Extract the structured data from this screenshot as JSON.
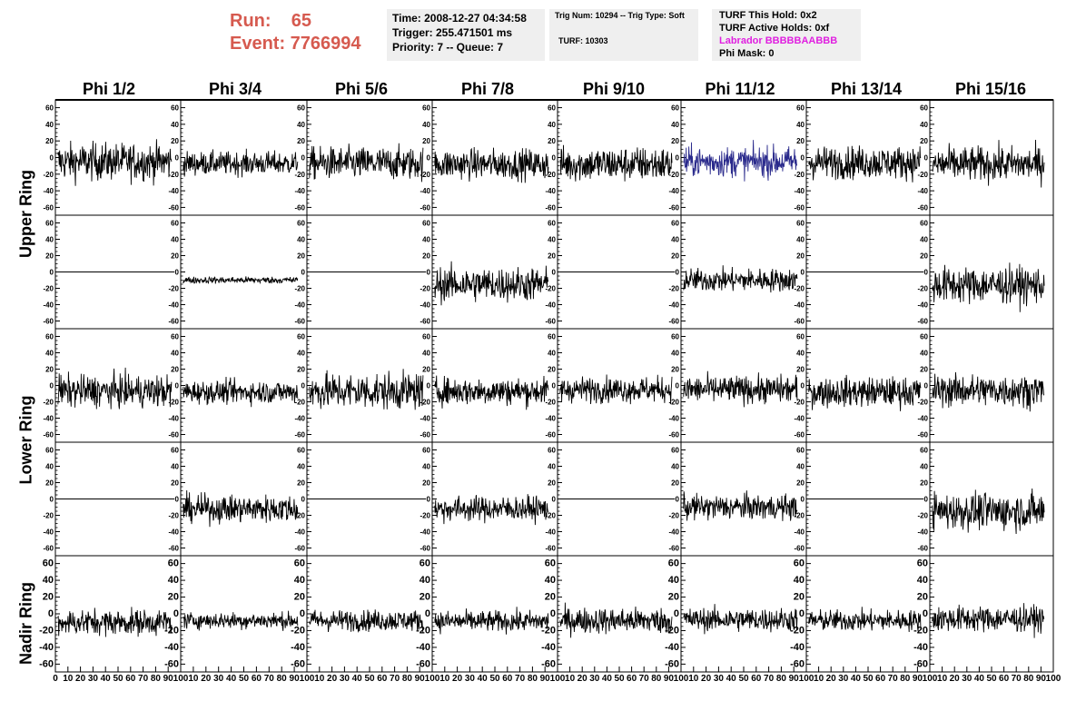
{
  "header": {
    "run_label": "Run:    65",
    "event_label": "Event: 7766994",
    "time": "Time: 2008-12-27 04:34:58",
    "trigger": "Trigger: 255.471501 ms",
    "priority": "Priority: 7 -- Queue: 7",
    "trig_num": "Trig Num: 10294 -- Trig Type: Soft",
    "turf": "TURF: 10303",
    "turf_hold": "TURF This Hold: 0x2",
    "turf_active": "TURF Active Holds: 0xf",
    "labrador": "Labrador BBBBBAABBB",
    "phi_mask": "Phi Mask: 0"
  },
  "columns": [
    "Phi 1/2",
    "Phi 3/4",
    "Phi 5/6",
    "Phi 7/8",
    "Phi 9/10",
    "Phi 11/12",
    "Phi 13/14",
    "Phi 15/16"
  ],
  "rows": [
    "Upper Ring",
    "Lower Ring",
    "Nadir Ring"
  ],
  "colors": {
    "trace": "#000000",
    "highlight": "#2a2a8c",
    "header_text": "#d65a4f",
    "labrador": "#e020e0",
    "box_bg": "#efefef"
  },
  "chart_data": {
    "type": "line",
    "title": "",
    "xlim": [
      0,
      100
    ],
    "ylim": [
      -65,
      65
    ],
    "y_ticks": [
      -60,
      -40,
      -20,
      0,
      20,
      40,
      60
    ],
    "y_tick_labels": [
      "-60",
      "-40",
      "-20",
      "0",
      "20",
      "40",
      "60"
    ],
    "x_ticks": [
      0,
      10,
      20,
      30,
      40,
      50,
      60,
      70,
      80,
      90,
      100
    ],
    "x_tick_labels": [
      "0",
      "10",
      "20",
      "30",
      "40",
      "50",
      "60",
      "70",
      "80",
      "90",
      "100"
    ],
    "grid": false,
    "highlight_panel": {
      "row": 0,
      "col": 5
    },
    "panels": [
      {
        "row": 0,
        "col": 0,
        "mean": -5,
        "amp": 16,
        "flat": false
      },
      {
        "row": 0,
        "col": 1,
        "mean": -7,
        "amp": 10,
        "flat": false
      },
      {
        "row": 0,
        "col": 2,
        "mean": -7,
        "amp": 14,
        "flat": false
      },
      {
        "row": 0,
        "col": 3,
        "mean": -8,
        "amp": 13,
        "flat": false
      },
      {
        "row": 0,
        "col": 4,
        "mean": -8,
        "amp": 15,
        "flat": false
      },
      {
        "row": 0,
        "col": 5,
        "mean": -5,
        "amp": 13,
        "flat": false
      },
      {
        "row": 0,
        "col": 6,
        "mean": -6,
        "amp": 14,
        "flat": false
      },
      {
        "row": 0,
        "col": 7,
        "mean": -8,
        "amp": 15,
        "flat": false
      },
      {
        "row": 1,
        "col": 0,
        "mean": 0,
        "amp": 0,
        "flat": true
      },
      {
        "row": 1,
        "col": 1,
        "mean": -10,
        "amp": 3,
        "flat": false
      },
      {
        "row": 1,
        "col": 2,
        "mean": 0,
        "amp": 0,
        "flat": true
      },
      {
        "row": 1,
        "col": 3,
        "mean": -15,
        "amp": 15,
        "flat": false
      },
      {
        "row": 1,
        "col": 4,
        "mean": 0,
        "amp": 0,
        "flat": true
      },
      {
        "row": 1,
        "col": 5,
        "mean": -10,
        "amp": 10,
        "flat": false
      },
      {
        "row": 1,
        "col": 6,
        "mean": 0,
        "amp": 0,
        "flat": true
      },
      {
        "row": 1,
        "col": 7,
        "mean": -16,
        "amp": 16,
        "flat": false
      },
      {
        "row": 2,
        "col": 0,
        "mean": -7,
        "amp": 14,
        "flat": false
      },
      {
        "row": 2,
        "col": 1,
        "mean": -8,
        "amp": 10,
        "flat": false
      },
      {
        "row": 2,
        "col": 2,
        "mean": -7,
        "amp": 16,
        "flat": false
      },
      {
        "row": 2,
        "col": 3,
        "mean": -7,
        "amp": 12,
        "flat": false
      },
      {
        "row": 2,
        "col": 4,
        "mean": -5,
        "amp": 11,
        "flat": false
      },
      {
        "row": 2,
        "col": 5,
        "mean": -5,
        "amp": 12,
        "flat": false
      },
      {
        "row": 2,
        "col": 6,
        "mean": -8,
        "amp": 13,
        "flat": false
      },
      {
        "row": 2,
        "col": 7,
        "mean": -6,
        "amp": 14,
        "flat": false
      },
      {
        "row": 3,
        "col": 0,
        "mean": 0,
        "amp": 0,
        "flat": true
      },
      {
        "row": 3,
        "col": 1,
        "mean": -12,
        "amp": 12,
        "flat": false
      },
      {
        "row": 3,
        "col": 2,
        "mean": 0,
        "amp": 0,
        "flat": true
      },
      {
        "row": 3,
        "col": 3,
        "mean": -12,
        "amp": 11,
        "flat": false
      },
      {
        "row": 3,
        "col": 4,
        "mean": 0,
        "amp": 0,
        "flat": true
      },
      {
        "row": 3,
        "col": 5,
        "mean": -10,
        "amp": 11,
        "flat": false
      },
      {
        "row": 3,
        "col": 6,
        "mean": 0,
        "amp": 0,
        "flat": true
      },
      {
        "row": 3,
        "col": 7,
        "mean": -15,
        "amp": 16,
        "flat": false
      },
      {
        "row": 4,
        "col": 0,
        "mean": -10,
        "amp": 11,
        "flat": false
      },
      {
        "row": 4,
        "col": 1,
        "mean": -8,
        "amp": 7,
        "flat": false
      },
      {
        "row": 4,
        "col": 2,
        "mean": -8,
        "amp": 9,
        "flat": false
      },
      {
        "row": 4,
        "col": 3,
        "mean": -9,
        "amp": 9,
        "flat": false
      },
      {
        "row": 4,
        "col": 4,
        "mean": -8,
        "amp": 11,
        "flat": false
      },
      {
        "row": 4,
        "col": 5,
        "mean": -7,
        "amp": 10,
        "flat": false
      },
      {
        "row": 4,
        "col": 6,
        "mean": -8,
        "amp": 9,
        "flat": false
      },
      {
        "row": 4,
        "col": 7,
        "mean": -6,
        "amp": 11,
        "flat": false
      }
    ]
  }
}
